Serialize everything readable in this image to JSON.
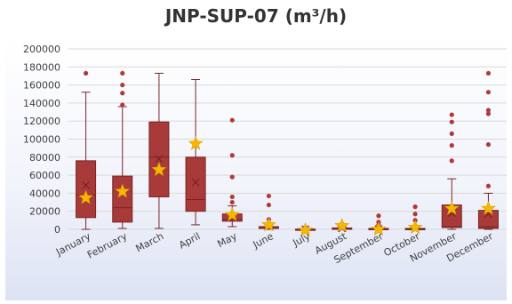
{
  "chart_data": {
    "type": "box",
    "title": "JNP-SUP-07 (m³/h)",
    "xlabel": "",
    "ylabel": "",
    "ylim": [
      0,
      200000
    ],
    "yticks": [
      0,
      20000,
      40000,
      60000,
      80000,
      100000,
      120000,
      140000,
      160000,
      180000,
      200000
    ],
    "ytick_labels": [
      "0",
      "20000",
      "40000",
      "60000",
      "80000",
      "100000",
      "120000",
      "140000",
      "160000",
      "180000",
      "200000"
    ],
    "grid": true,
    "legend": "none",
    "colors": {
      "box_fill": "#a83a3a",
      "box_edge": "#7a2424",
      "outlier": "#b03a3a",
      "star": "#f5b800",
      "gridline": "#d9d9d9",
      "background_gradient_end": "#dde3f3"
    },
    "categories": [
      "January",
      "February",
      "March",
      "April",
      "May",
      "June",
      "July",
      "August",
      "September",
      "October",
      "November",
      "December"
    ],
    "boxes": [
      {
        "min": 0,
        "q1": 13000,
        "median": 38000,
        "q3": 76000,
        "max": 152000,
        "mean": 49000,
        "outliers": [
          173000
        ]
      },
      {
        "min": 1000,
        "q1": 8000,
        "median": 24000,
        "q3": 59000,
        "max": 136000,
        "mean": 40000,
        "outliers": [
          138000,
          151000,
          160000,
          173000
        ]
      },
      {
        "min": 1000,
        "q1": 36000,
        "median": 80000,
        "q3": 119000,
        "max": 173000,
        "mean": 78000,
        "outliers": []
      },
      {
        "min": 5000,
        "q1": 20000,
        "median": 33000,
        "q3": 80000,
        "max": 166000,
        "mean": 52000,
        "outliers": []
      },
      {
        "min": 3000,
        "q1": 9000,
        "median": 11000,
        "q3": 17000,
        "max": 26000,
        "mean": 14000,
        "outliers": [
          30000,
          36000,
          58000,
          82000,
          121000
        ]
      },
      {
        "min": 0,
        "q1": 1000,
        "median": 1500,
        "q3": 3000,
        "max": 7000,
        "mean": 3000,
        "outliers": [
          11000,
          27000,
          37000
        ]
      },
      {
        "min": 0,
        "q1": 0,
        "median": 0,
        "q3": 300,
        "max": 1000,
        "mean": 200,
        "outliers": [
          2000
        ]
      },
      {
        "min": 0,
        "q1": 0,
        "median": 500,
        "q3": 1500,
        "max": 3000,
        "mean": 1000,
        "outliers": [
          6000
        ]
      },
      {
        "min": 0,
        "q1": 0,
        "median": 0,
        "q3": 1000,
        "max": 2000,
        "mean": 500,
        "outliers": [
          5000,
          8000,
          15000
        ]
      },
      {
        "min": 0,
        "q1": 0,
        "median": 0,
        "q3": 1000,
        "max": 2000,
        "mean": 500,
        "outliers": [
          4000,
          10000,
          17000,
          25000
        ]
      },
      {
        "min": 0,
        "q1": 2000,
        "median": 3000,
        "q3": 27000,
        "max": 56000,
        "mean": 18000,
        "outliers": [
          76000,
          93000,
          106000,
          119000,
          127000
        ]
      },
      {
        "min": 0,
        "q1": 1000,
        "median": 3000,
        "q3": 21000,
        "max": 40000,
        "mean": 17000,
        "outliers": [
          48000,
          94000,
          128000,
          132000,
          152000,
          173000
        ]
      }
    ],
    "star_values": [
      35000,
      42000,
      66000,
      95000,
      16000,
      5000,
      -1000,
      4000,
      0,
      2000,
      23000,
      23000
    ]
  }
}
